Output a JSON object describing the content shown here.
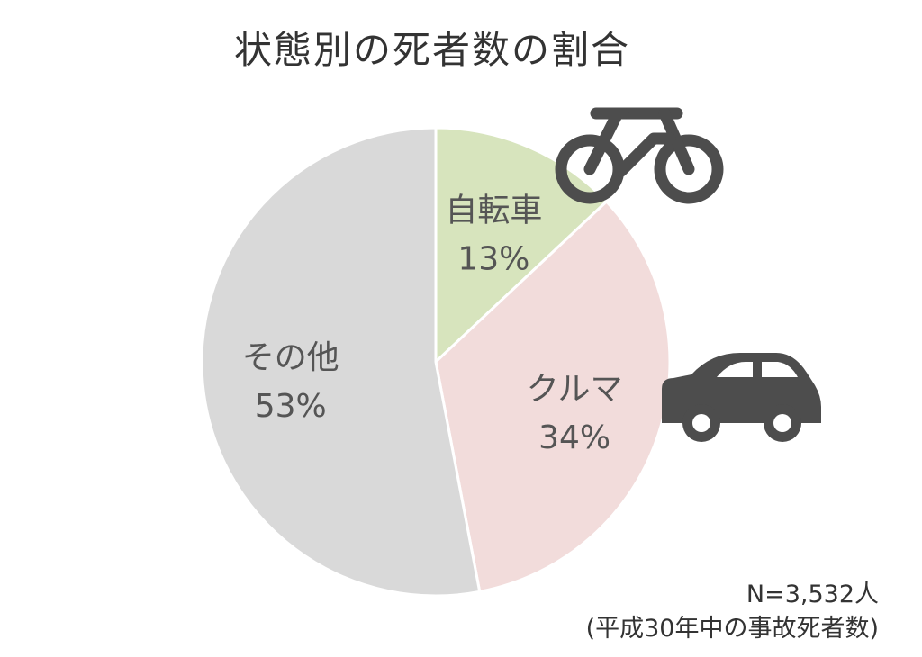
{
  "chart_data": {
    "type": "pie",
    "title": "状態別の死者数の割合",
    "slices": [
      {
        "name": "自転車",
        "value": 13,
        "label": "13%",
        "color": "#d7e4bd"
      },
      {
        "name": "クルマ",
        "value": 34,
        "label": "34%",
        "color": "#f2dcdb"
      },
      {
        "name": "その他",
        "value": 53,
        "label": "53%",
        "color": "#d9d9d9"
      }
    ],
    "icons": [
      "bicycle-icon",
      "car-icon"
    ],
    "icon_color": "#4d4d4d",
    "note": {
      "n": "N=3,532人",
      "source": "(平成30年中の事故死者数)"
    }
  }
}
